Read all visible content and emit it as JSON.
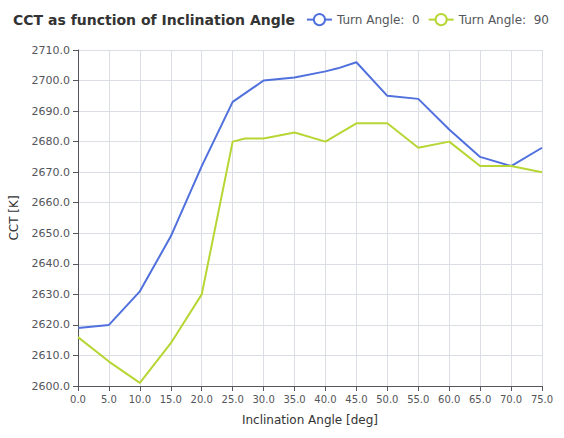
{
  "chart_data": {
    "type": "line",
    "title": "CCT as function of Inclination Angle",
    "xlabel": "Inclination Angle [deg]",
    "ylabel": "CCT [K]",
    "xlim": [
      0,
      75
    ],
    "ylim": [
      2600.0,
      2710.0
    ],
    "xticks": [
      {
        "value": 0,
        "label": "0.0"
      },
      {
        "value": 5,
        "label": "5.0"
      },
      {
        "value": 10,
        "label": "10.0"
      },
      {
        "value": 15,
        "label": "15.0"
      },
      {
        "value": 20,
        "label": "20.0"
      },
      {
        "value": 25,
        "label": "25.0"
      },
      {
        "value": 30,
        "label": "30.0"
      },
      {
        "value": 35,
        "label": "35.0"
      },
      {
        "value": 40,
        "label": "40.0"
      },
      {
        "value": 45,
        "label": "45.0"
      },
      {
        "value": 50,
        "label": "50.0"
      },
      {
        "value": 55,
        "label": "55.0"
      },
      {
        "value": 60,
        "label": "60.0"
      },
      {
        "value": 65,
        "label": "65.0"
      },
      {
        "value": 70,
        "label": "70.0"
      },
      {
        "value": 75,
        "label": "75.0"
      }
    ],
    "yticks": [
      {
        "value": 2600.0,
        "label": "2600.0"
      },
      {
        "value": 2610.0,
        "label": "2610.0"
      },
      {
        "value": 2620.0,
        "label": "2620.0"
      },
      {
        "value": 2630.0,
        "label": "2630.0"
      },
      {
        "value": 2640.0,
        "label": "2640.0"
      },
      {
        "value": 2650.0,
        "label": "2650.0"
      },
      {
        "value": 2660.0,
        "label": "2660.0"
      },
      {
        "value": 2670.0,
        "label": "2670.0"
      },
      {
        "value": 2680.0,
        "label": "2680.0"
      },
      {
        "value": 2690.0,
        "label": "2690.0"
      },
      {
        "value": 2700.0,
        "label": "2700.0"
      },
      {
        "value": 2710.0,
        "label": "2710.0"
      }
    ],
    "grid": true,
    "legend": "upper right",
    "series": [
      {
        "name": "Turn Angle:  0",
        "x": [
          0,
          5,
          10,
          15,
          20,
          25,
          30,
          35,
          40,
          42,
          45,
          50,
          55,
          60,
          65,
          70,
          75
        ],
        "values": [
          2619,
          2620,
          2631,
          2649,
          2672,
          2693,
          2700,
          2701,
          2703,
          2704,
          2706,
          2695,
          2694,
          2684,
          2675,
          2672,
          2678
        ]
      },
      {
        "name": "Turn Angle:  90",
        "x": [
          0,
          5,
          10,
          15,
          20,
          25,
          27,
          30,
          35,
          40,
          45,
          50,
          55,
          60,
          65,
          70,
          75
        ],
        "values": [
          2616,
          2608,
          2601,
          2614,
          2630,
          2680,
          2681,
          2681,
          2683,
          2680,
          2686,
          2686,
          2678,
          2680,
          2672,
          2672,
          2670
        ]
      }
    ]
  }
}
